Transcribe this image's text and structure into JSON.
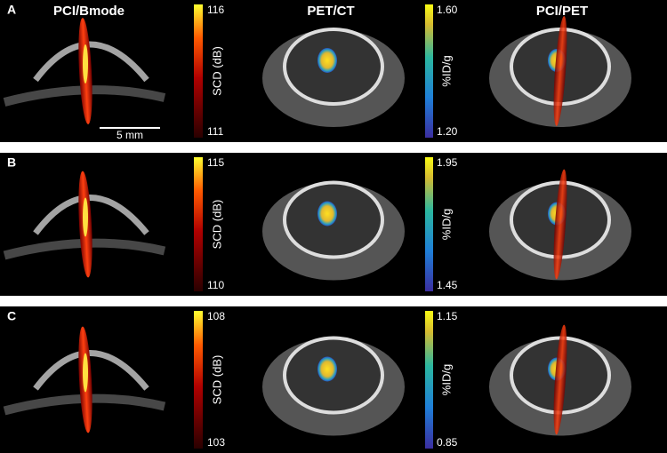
{
  "header": {
    "columns": [
      "PCI/Bmode",
      "PET/CT",
      "PCI/PET"
    ]
  },
  "rows": [
    {
      "label": "A",
      "scd_max": "116",
      "scd_min": "111",
      "scd_label": "SCD (dB)",
      "pet_max": "1.60",
      "pet_min": "1.20",
      "pet_label": "%ID/g",
      "scale_bar": "5 mm"
    },
    {
      "label": "B",
      "scd_max": "115",
      "scd_min": "110",
      "scd_label": "SCD (dB)",
      "pet_max": "1.95",
      "pet_min": "1.45",
      "pet_label": "%ID/g"
    },
    {
      "label": "C",
      "scd_max": "108",
      "scd_min": "103",
      "scd_label": "SCD (dB)",
      "pet_max": "1.15",
      "pet_min": "0.85",
      "pet_label": "%ID/g"
    }
  ]
}
